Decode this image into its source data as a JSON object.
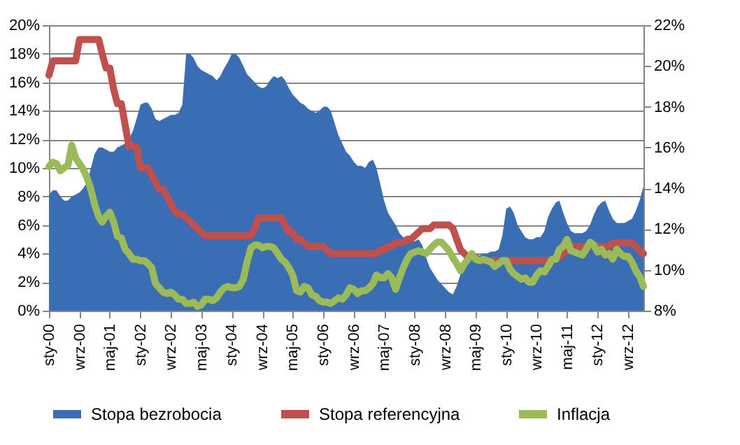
{
  "chart_data": {
    "type": "line",
    "x": [
      "2000-01",
      "2000-02",
      "2000-03",
      "2000-04",
      "2000-05",
      "2000-06",
      "2000-07",
      "2000-08",
      "2000-09",
      "2000-10",
      "2000-11",
      "2000-12",
      "2001-01",
      "2001-02",
      "2001-03",
      "2001-04",
      "2001-05",
      "2001-06",
      "2001-07",
      "2001-08",
      "2001-09",
      "2001-10",
      "2001-11",
      "2001-12",
      "2002-01",
      "2002-02",
      "2002-03",
      "2002-04",
      "2002-05",
      "2002-06",
      "2002-07",
      "2002-08",
      "2002-09",
      "2002-10",
      "2002-11",
      "2002-12",
      "2003-01",
      "2003-02",
      "2003-03",
      "2003-04",
      "2003-05",
      "2003-06",
      "2003-07",
      "2003-08",
      "2003-09",
      "2003-10",
      "2003-11",
      "2003-12",
      "2004-01",
      "2004-02",
      "2004-03",
      "2004-04",
      "2004-05",
      "2004-06",
      "2004-07",
      "2004-08",
      "2004-09",
      "2004-10",
      "2004-11",
      "2004-12",
      "2005-01",
      "2005-02",
      "2005-03",
      "2005-04",
      "2005-05",
      "2005-06",
      "2005-07",
      "2005-08",
      "2005-09",
      "2005-10",
      "2005-11",
      "2005-12",
      "2006-01",
      "2006-02",
      "2006-03",
      "2006-04",
      "2006-05",
      "2006-06",
      "2006-07",
      "2006-08",
      "2006-09",
      "2006-10",
      "2006-11",
      "2006-12",
      "2007-01",
      "2007-02",
      "2007-03",
      "2007-04",
      "2007-05",
      "2007-06",
      "2007-07",
      "2007-08",
      "2007-09",
      "2007-10",
      "2007-11",
      "2007-12",
      "2008-01",
      "2008-02",
      "2008-03",
      "2008-04",
      "2008-05",
      "2008-06",
      "2008-07",
      "2008-08",
      "2008-09",
      "2008-10",
      "2008-11",
      "2008-12",
      "2009-01",
      "2009-02",
      "2009-03",
      "2009-04",
      "2009-05",
      "2009-06",
      "2009-07",
      "2009-08",
      "2009-09",
      "2009-10",
      "2009-11",
      "2009-12",
      "2010-01",
      "2010-02",
      "2010-03",
      "2010-04",
      "2010-05",
      "2010-06",
      "2010-07",
      "2010-08",
      "2010-09",
      "2010-10",
      "2010-11",
      "2010-12",
      "2011-01",
      "2011-02",
      "2011-03",
      "2011-04",
      "2011-05",
      "2011-06",
      "2011-07",
      "2011-08",
      "2011-09",
      "2011-10",
      "2011-11",
      "2011-12",
      "2012-01",
      "2012-02",
      "2012-03",
      "2012-04",
      "2012-05",
      "2012-06",
      "2012-07",
      "2012-08",
      "2012-09",
      "2012-10",
      "2012-11",
      "2012-12",
      "2013-01"
    ],
    "series": [
      {
        "name": "Stopa bezrobocia",
        "type": "area",
        "axis": "y2",
        "color": "#3a6db3",
        "values": [
          13.7,
          13.9,
          13.9,
          13.6,
          13.4,
          13.4,
          13.6,
          13.7,
          13.8,
          14.0,
          14.3,
          15.0,
          15.7,
          16.0,
          16.0,
          15.9,
          15.8,
          15.8,
          16.0,
          16.1,
          16.2,
          16.4,
          16.8,
          17.4,
          18.1,
          18.2,
          18.2,
          17.9,
          17.4,
          17.3,
          17.4,
          17.5,
          17.6,
          17.6,
          17.7,
          18.1,
          20.6,
          20.6,
          20.4,
          20.0,
          19.8,
          19.7,
          19.6,
          19.5,
          19.3,
          19.5,
          19.9,
          20.2,
          20.6,
          20.6,
          20.4,
          20.0,
          19.6,
          19.4,
          19.2,
          19.0,
          18.9,
          19.0,
          19.3,
          19.5,
          19.4,
          19.5,
          19.3,
          18.9,
          18.6,
          18.4,
          18.2,
          18.1,
          17.9,
          17.8,
          17.7,
          17.8,
          18.0,
          18.0,
          17.8,
          17.2,
          16.6,
          16.2,
          15.8,
          15.6,
          15.3,
          15.1,
          15.1,
          15.0,
          15.3,
          15.4,
          15.0,
          14.2,
          13.4,
          12.8,
          12.5,
          12.2,
          11.8,
          11.6,
          11.5,
          11.5,
          11.4,
          11.5,
          11.2,
          10.6,
          10.1,
          9.8,
          9.5,
          9.3,
          9.1,
          8.9,
          8.8,
          9.2,
          9.8,
          10.4,
          10.8,
          10.9,
          10.8,
          10.7,
          10.8,
          10.8,
          10.9,
          10.9,
          11.0,
          11.7,
          13.0,
          13.1,
          12.8,
          12.2,
          11.9,
          11.6,
          11.5,
          11.5,
          11.6,
          11.6,
          11.9,
          12.6,
          13.0,
          13.3,
          13.4,
          12.8,
          12.3,
          11.9,
          11.8,
          11.8,
          11.8,
          11.9,
          12.2,
          12.7,
          13.1,
          13.3,
          13.4,
          12.9,
          12.5,
          12.3,
          12.3,
          12.3,
          12.4,
          12.5,
          12.9,
          13.4,
          14.1
        ]
      },
      {
        "name": "Stopa referencyjna",
        "color": "#c0504d",
        "values": [
          16.5,
          17.5,
          17.5,
          17.5,
          17.5,
          17.5,
          17.5,
          17.5,
          19,
          19,
          19,
          19,
          19,
          19,
          18,
          17,
          17,
          15.5,
          14.5,
          14.5,
          13,
          11.5,
          11.5,
          11.5,
          10,
          10,
          10,
          9.5,
          9,
          8.5,
          8.5,
          8,
          7.5,
          7,
          6.75,
          6.75,
          6.5,
          6.25,
          6,
          5.75,
          5.5,
          5.25,
          5.25,
          5.25,
          5.25,
          5.25,
          5.25,
          5.25,
          5.25,
          5.25,
          5.25,
          5.25,
          5.25,
          5.25,
          5.75,
          6.5,
          6.5,
          6.5,
          6.5,
          6.5,
          6.5,
          6.5,
          6,
          5.5,
          5.5,
          5,
          5,
          4.75,
          4.5,
          4.5,
          4.5,
          4.5,
          4.5,
          4.25,
          4,
          4,
          4,
          4,
          4,
          4,
          4,
          4,
          4,
          4,
          4,
          4,
          4,
          4.25,
          4.25,
          4.5,
          4.5,
          4.75,
          4.75,
          4.75,
          5,
          5,
          5.25,
          5.5,
          5.75,
          5.75,
          5.75,
          6,
          6,
          6,
          6,
          6,
          5.75,
          5,
          4.25,
          4,
          3.75,
          3.75,
          3.75,
          3.5,
          3.5,
          3.5,
          3.5,
          3.5,
          3.5,
          3.5,
          3.5,
          3.5,
          3.5,
          3.5,
          3.5,
          3.5,
          3.5,
          3.5,
          3.5,
          3.5,
          3.5,
          3.5,
          3.5,
          3.75,
          3.75,
          4,
          4.25,
          4.5,
          4.5,
          4.5,
          4.5,
          4.5,
          4.5,
          4.5,
          4.5,
          4.5,
          4.5,
          4.5,
          4.75,
          4.75,
          4.75,
          4.75,
          4.75,
          4.75,
          4.5,
          4.25,
          4.0
        ]
      },
      {
        "name": "Inflacja",
        "color": "#9bbb59",
        "values": [
          10.1,
          10.4,
          10.3,
          9.8,
          10.0,
          10.2,
          11.6,
          10.7,
          10.3,
          9.9,
          9.3,
          8.5,
          7.4,
          6.6,
          6.2,
          6.6,
          6.9,
          6.2,
          5.2,
          5.1,
          4.3,
          4.0,
          3.6,
          3.6,
          3.5,
          3.5,
          3.3,
          3.0,
          1.9,
          1.6,
          1.3,
          1.2,
          1.3,
          1.1,
          0.8,
          0.8,
          0.5,
          0.5,
          0.6,
          0.3,
          0.4,
          0.8,
          0.8,
          0.7,
          0.9,
          1.3,
          1.6,
          1.7,
          1.6,
          1.6,
          1.7,
          2.2,
          3.4,
          4.4,
          4.6,
          4.6,
          4.4,
          4.5,
          4.5,
          4.4,
          4.0,
          3.6,
          3.4,
          3.0,
          2.5,
          1.4,
          1.3,
          1.7,
          1.6,
          1.1,
          1.0,
          0.7,
          0.6,
          0.6,
          0.5,
          0.7,
          0.9,
          0.8,
          1.1,
          1.6,
          1.5,
          1.2,
          1.4,
          1.4,
          1.6,
          1.9,
          2.5,
          2.3,
          2.3,
          2.6,
          2.3,
          1.5,
          2.3,
          3.0,
          3.6,
          4.0,
          4.1,
          4.2,
          4.1,
          4.0,
          4.3,
          4.6,
          4.8,
          4.8,
          4.5,
          4.2,
          3.7,
          3.3,
          2.8,
          3.3,
          3.6,
          4.0,
          3.6,
          3.5,
          3.6,
          3.5,
          3.4,
          3.1,
          3.3,
          3.5,
          3.5,
          2.9,
          2.6,
          2.4,
          2.2,
          2.3,
          2.0,
          2.0,
          2.5,
          2.8,
          2.7,
          3.1,
          3.6,
          3.6,
          4.3,
          4.5,
          5.0,
          4.2,
          4.1,
          4.0,
          3.9,
          4.3,
          4.8,
          4.6,
          4.1,
          4.3,
          3.9,
          4.0,
          3.6,
          4.3,
          4.0,
          3.8,
          3.8,
          3.4,
          2.8,
          2.4,
          1.7
        ]
      }
    ],
    "xlim": [
      "2000-01",
      "2013-01"
    ],
    "xticks": [
      {
        "value": "2000-01",
        "label": "sty-00"
      },
      {
        "value": "2000-09",
        "label": "wrz-00"
      },
      {
        "value": "2001-05",
        "label": "maj-01"
      },
      {
        "value": "2002-01",
        "label": "sty-02"
      },
      {
        "value": "2002-09",
        "label": "wrz-02"
      },
      {
        "value": "2003-05",
        "label": "maj-03"
      },
      {
        "value": "2004-01",
        "label": "sty-04"
      },
      {
        "value": "2004-09",
        "label": "wrz-04"
      },
      {
        "value": "2005-05",
        "label": "maj-05"
      },
      {
        "value": "2006-01",
        "label": "sty-06"
      },
      {
        "value": "2006-09",
        "label": "wrz-06"
      },
      {
        "value": "2007-05",
        "label": "maj-07"
      },
      {
        "value": "2008-01",
        "label": "sty-08"
      },
      {
        "value": "2008-09",
        "label": "wrz-08"
      },
      {
        "value": "2009-05",
        "label": "maj-09"
      },
      {
        "value": "2010-01",
        "label": "sty-10"
      },
      {
        "value": "2010-09",
        "label": "wrz-10"
      },
      {
        "value": "2011-05",
        "label": "maj-11"
      },
      {
        "value": "2012-01",
        "label": "sty-12"
      },
      {
        "value": "2012-09",
        "label": "wrz-12"
      }
    ],
    "ylim": [
      0,
      20
    ],
    "yticks": [
      {
        "value": 0,
        "label": "0%"
      },
      {
        "value": 2,
        "label": "2%"
      },
      {
        "value": 4,
        "label": "4%"
      },
      {
        "value": 6,
        "label": "6%"
      },
      {
        "value": 8,
        "label": "8%"
      },
      {
        "value": 10,
        "label": "10%"
      },
      {
        "value": 12,
        "label": "12%"
      },
      {
        "value": 14,
        "label": "14%"
      },
      {
        "value": 16,
        "label": "16%"
      },
      {
        "value": 18,
        "label": "18%"
      },
      {
        "value": 20,
        "label": "20%"
      }
    ],
    "y2lim": [
      8,
      22
    ],
    "y2ticks": [
      {
        "value": 8,
        "label": "8%"
      },
      {
        "value": 10,
        "label": "10%"
      },
      {
        "value": 12,
        "label": "12%"
      },
      {
        "value": 14,
        "label": "14%"
      },
      {
        "value": 16,
        "label": "16%"
      },
      {
        "value": 18,
        "label": "18%"
      },
      {
        "value": 20,
        "label": "20%"
      },
      {
        "value": 22,
        "label": "22%"
      }
    ],
    "grid": "y",
    "legend": "bottom",
    "marker": "none",
    "line_style": "solid"
  }
}
